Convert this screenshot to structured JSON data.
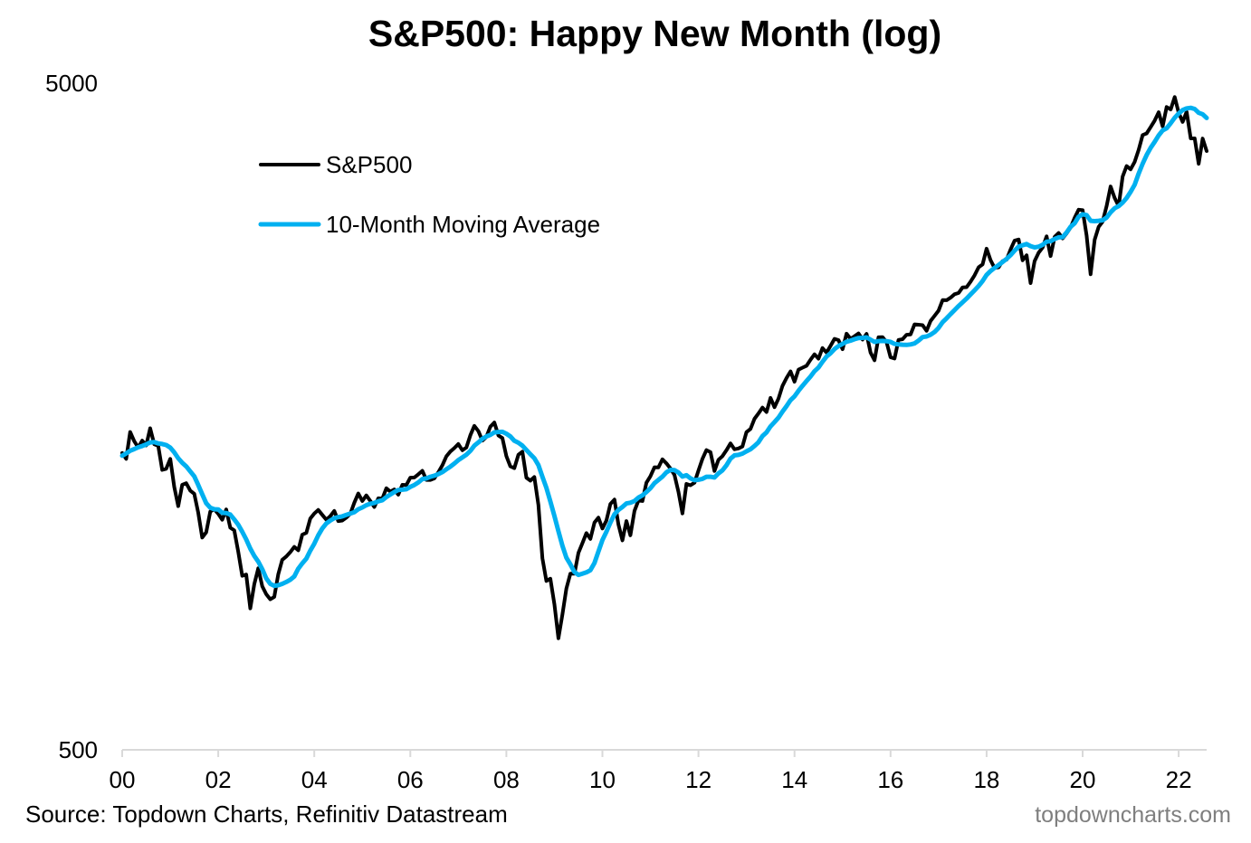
{
  "chart_data": {
    "type": "line",
    "title": "S&P500: Happy New Month (log)",
    "xlabel": "",
    "ylabel": "",
    "yscale": "log",
    "ylim": [
      500,
      5000
    ],
    "y_ticks": [
      {
        "value": 5000,
        "label": "5000"
      },
      {
        "value": 500,
        "label": "500"
      }
    ],
    "x_range": [
      2000.0,
      2022.6
    ],
    "x_ticks": [
      {
        "value": 2000,
        "label": "00"
      },
      {
        "value": 2002,
        "label": "02"
      },
      {
        "value": 2004,
        "label": "04"
      },
      {
        "value": 2006,
        "label": "06"
      },
      {
        "value": 2008,
        "label": "08"
      },
      {
        "value": 2010,
        "label": "10"
      },
      {
        "value": 2012,
        "label": "12"
      },
      {
        "value": 2014,
        "label": "14"
      },
      {
        "value": 2016,
        "label": "16"
      },
      {
        "value": 2018,
        "label": "18"
      },
      {
        "value": 2020,
        "label": "20"
      },
      {
        "value": 2022,
        "label": "22"
      }
    ],
    "grid": false,
    "legend": {
      "position": "top-left",
      "entries": [
        {
          "name": "S&P500",
          "color": "#000000"
        },
        {
          "name": "10-Month Moving Average",
          "color": "#00b0f0"
        }
      ]
    },
    "frequency": "monthly",
    "start": "2000-01",
    "series": [
      {
        "name": "S&P500",
        "color": "#000000",
        "values": [
          1394,
          1366,
          1499,
          1452,
          1421,
          1455,
          1431,
          1518,
          1437,
          1429,
          1315,
          1320,
          1366,
          1240,
          1160,
          1249,
          1256,
          1224,
          1211,
          1134,
          1041,
          1060,
          1139,
          1148,
          1130,
          1107,
          1147,
          1077,
          1067,
          991,
          912,
          916,
          815,
          886,
          936,
          880,
          856,
          841,
          848,
          917,
          964,
          975,
          990,
          1008,
          996,
          1051,
          1058,
          1112,
          1131,
          1145,
          1126,
          1107,
          1121,
          1141,
          1102,
          1104,
          1115,
          1130,
          1174,
          1212,
          1181,
          1204,
          1181,
          1157,
          1192,
          1191,
          1234,
          1220,
          1229,
          1207,
          1249,
          1248,
          1280,
          1281,
          1295,
          1311,
          1270,
          1270,
          1277,
          1304,
          1336,
          1378,
          1401,
          1418,
          1438,
          1407,
          1421,
          1482,
          1531,
          1503,
          1455,
          1474,
          1527,
          1549,
          1481,
          1468,
          1379,
          1331,
          1323,
          1386,
          1400,
          1280,
          1267,
          1283,
          1165,
          969,
          896,
          903,
          826,
          735,
          798,
          873,
          919,
          919,
          987,
          1021,
          1057,
          1036,
          1096,
          1115,
          1074,
          1104,
          1169,
          1187,
          1089,
          1031,
          1102,
          1049,
          1141,
          1183,
          1181,
          1258,
          1286,
          1327,
          1326,
          1364,
          1345,
          1321,
          1292,
          1219,
          1131,
          1253,
          1247,
          1258,
          1312,
          1366,
          1408,
          1398,
          1310,
          1362,
          1379,
          1407,
          1441,
          1412,
          1416,
          1426,
          1498,
          1515,
          1569,
          1598,
          1631,
          1606,
          1686,
          1633,
          1682,
          1757,
          1806,
          1848,
          1783,
          1859,
          1872,
          1884,
          1924,
          1960,
          1931,
          2003,
          1972,
          2018,
          2068,
          2059,
          1995,
          2105,
          2068,
          2086,
          2107,
          2063,
          2104,
          1972,
          1920,
          2079,
          2080,
          2044,
          1940,
          1932,
          2060,
          2065,
          2097,
          2099,
          2174,
          2171,
          2168,
          2126,
          2199,
          2239,
          2279,
          2364,
          2363,
          2384,
          2412,
          2423,
          2470,
          2472,
          2519,
          2575,
          2648,
          2674,
          2824,
          2714,
          2641,
          2648,
          2705,
          2718,
          2816,
          2902,
          2914,
          2712,
          2760,
          2507,
          2704,
          2784,
          2834,
          2946,
          2752,
          2942,
          2980,
          2926,
          2977,
          3038,
          3141,
          3231,
          3226,
          2954,
          2585,
          2912,
          3044,
          3100,
          3271,
          3500,
          3363,
          3270,
          3622,
          3756,
          3714,
          3811,
          3973,
          4181,
          4204,
          4298,
          4395,
          4523,
          4308,
          4605,
          4567,
          4766,
          4516,
          4374,
          4530,
          4132,
          4132,
          3785,
          4130,
          3955
        ]
      },
      {
        "name": "10-Month Moving Average",
        "color": "#00b0f0",
        "values": [
          1381,
          1392,
          1405,
          1413,
          1422,
          1428,
          1436,
          1446,
          1448,
          1441,
          1438,
          1433,
          1420,
          1397,
          1369,
          1348,
          1331,
          1308,
          1286,
          1248,
          1209,
          1172,
          1154,
          1148,
          1147,
          1134,
          1133,
          1127,
          1108,
          1088,
          1062,
          1034,
          1002,
          977,
          958,
          933,
          904,
          887,
          881,
          883,
          887,
          893,
          900,
          910,
          935,
          952,
          968,
          995,
          1019,
          1049,
          1074,
          1093,
          1104,
          1113,
          1117,
          1120,
          1126,
          1131,
          1136,
          1148,
          1155,
          1164,
          1170,
          1173,
          1180,
          1184,
          1197,
          1208,
          1218,
          1227,
          1228,
          1230,
          1240,
          1248,
          1259,
          1274,
          1277,
          1284,
          1289,
          1296,
          1305,
          1318,
          1330,
          1344,
          1360,
          1373,
          1386,
          1404,
          1430,
          1446,
          1464,
          1476,
          1484,
          1497,
          1499,
          1500,
          1490,
          1476,
          1454,
          1444,
          1430,
          1409,
          1388,
          1369,
          1337,
          1284,
          1236,
          1179,
          1121,
          1064,
          1012,
          971,
          949,
          924,
          915,
          919,
          923,
          930,
          953,
          992,
          1032,
          1062,
          1096,
          1128,
          1145,
          1157,
          1171,
          1174,
          1181,
          1195,
          1204,
          1218,
          1234,
          1256,
          1270,
          1285,
          1304,
          1315,
          1314,
          1303,
          1285,
          1291,
          1277,
          1269,
          1271,
          1275,
          1284,
          1284,
          1281,
          1299,
          1313,
          1336,
          1367,
          1383,
          1385,
          1391,
          1402,
          1412,
          1428,
          1447,
          1478,
          1497,
          1528,
          1551,
          1575,
          1608,
          1639,
          1673,
          1695,
          1728,
          1758,
          1787,
          1816,
          1849,
          1873,
          1910,
          1945,
          1967,
          1996,
          2017,
          2032,
          2047,
          2055,
          2065,
          2074,
          2075,
          2078,
          2062,
          2046,
          2052,
          2053,
          2051,
          2046,
          2032,
          2029,
          2026,
          2025,
          2028,
          2035,
          2055,
          2080,
          2085,
          2097,
          2117,
          2147,
          2190,
          2220,
          2252,
          2283,
          2316,
          2346,
          2376,
          2411,
          2445,
          2482,
          2525,
          2579,
          2614,
          2642,
          2668,
          2697,
          2726,
          2761,
          2804,
          2843,
          2857,
          2869,
          2848,
          2836,
          2843,
          2862,
          2892,
          2897,
          2920,
          2936,
          2939,
          2986,
          3045,
          3083,
          3153,
          3180,
          3171,
          3109,
          3105,
          3109,
          3115,
          3144,
          3201,
          3247,
          3270,
          3310,
          3363,
          3436,
          3521,
          3660,
          3786,
          3902,
          4001,
          4084,
          4175,
          4247,
          4279,
          4355,
          4437,
          4505,
          4557,
          4584,
          4592,
          4574,
          4514,
          4492,
          4435
        ]
      }
    ]
  },
  "footer": {
    "source": "Source: Topdown Charts, Refinitiv Datastream",
    "watermark": "topdowncharts.com"
  }
}
